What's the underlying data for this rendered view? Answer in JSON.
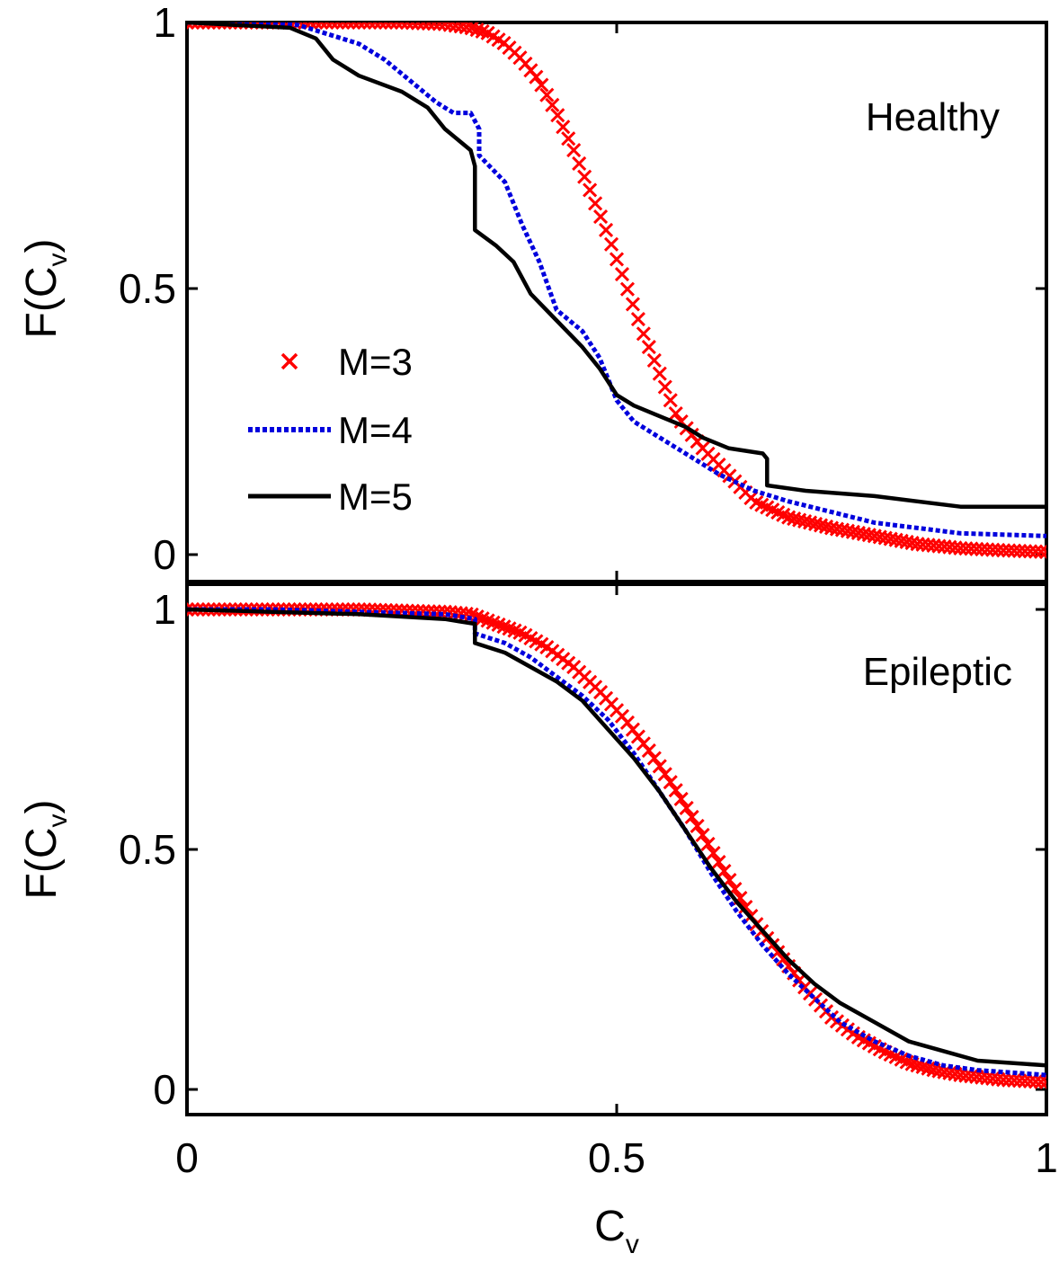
{
  "chart_data": [
    {
      "type": "line",
      "panel_label": "Healthy",
      "xlim": [
        0,
        1
      ],
      "ylim": [
        0,
        1
      ],
      "ylabel": "F(C",
      "ylabel_sub": "v",
      "ylabel_suffix": ")",
      "yticks": [
        "0",
        "0.5",
        "1"
      ],
      "legend": {
        "placement": "center-left",
        "entries": [
          "M=3",
          "M=4",
          "M=5"
        ]
      },
      "series": [
        {
          "name": "M=3",
          "color": "#ff0000",
          "marker": "x",
          "x": [
            0.0,
            0.05,
            0.1,
            0.15,
            0.2,
            0.25,
            0.3,
            0.33,
            0.35,
            0.37,
            0.39,
            0.41,
            0.43,
            0.45,
            0.47,
            0.49,
            0.51,
            0.53,
            0.55,
            0.57,
            0.6,
            0.63,
            0.66,
            0.7,
            0.75,
            0.8,
            0.85,
            0.9,
            0.95,
            1.0
          ],
          "y": [
            1.0,
            1.0,
            1.0,
            1.0,
            1.0,
            1.0,
            0.997,
            0.99,
            0.98,
            0.96,
            0.93,
            0.89,
            0.83,
            0.76,
            0.68,
            0.6,
            0.51,
            0.42,
            0.34,
            0.26,
            0.2,
            0.15,
            0.1,
            0.07,
            0.05,
            0.035,
            0.02,
            0.012,
            0.008,
            0.005
          ]
        },
        {
          "name": "M=4",
          "color": "#0000dd",
          "dash": "dotted",
          "x": [
            0.0,
            0.1,
            0.13,
            0.16,
            0.2,
            0.23,
            0.26,
            0.29,
            0.31,
            0.33,
            0.34,
            0.34,
            0.37,
            0.39,
            0.41,
            0.43,
            0.46,
            0.48,
            0.5,
            0.52,
            0.55,
            0.58,
            0.62,
            0.66,
            0.7,
            0.75,
            0.8,
            0.85,
            0.9,
            1.0
          ],
          "y": [
            1.0,
            1.0,
            0.995,
            0.98,
            0.96,
            0.93,
            0.89,
            0.85,
            0.83,
            0.83,
            0.8,
            0.75,
            0.7,
            0.62,
            0.55,
            0.46,
            0.42,
            0.37,
            0.29,
            0.25,
            0.22,
            0.19,
            0.15,
            0.12,
            0.1,
            0.08,
            0.06,
            0.05,
            0.04,
            0.035
          ]
        },
        {
          "name": "M=5",
          "color": "#000000",
          "dash": "solid",
          "x": [
            0.0,
            0.12,
            0.15,
            0.17,
            0.2,
            0.25,
            0.28,
            0.3,
            0.33,
            0.335,
            0.335,
            0.36,
            0.38,
            0.4,
            0.43,
            0.46,
            0.48,
            0.5,
            0.52,
            0.55,
            0.58,
            0.6,
            0.63,
            0.67,
            0.675,
            0.675,
            0.72,
            0.8,
            0.9,
            1.0
          ],
          "y": [
            1.0,
            0.99,
            0.97,
            0.93,
            0.9,
            0.87,
            0.84,
            0.8,
            0.76,
            0.73,
            0.61,
            0.58,
            0.55,
            0.49,
            0.44,
            0.39,
            0.35,
            0.3,
            0.28,
            0.26,
            0.24,
            0.22,
            0.2,
            0.19,
            0.18,
            0.13,
            0.12,
            0.11,
            0.09,
            0.09
          ]
        }
      ]
    },
    {
      "type": "line",
      "panel_label": "Epileptic",
      "xlim": [
        0,
        1
      ],
      "ylim": [
        0,
        1
      ],
      "xlabel": "C",
      "xlabel_sub": "v",
      "ylabel": "F(C",
      "ylabel_sub": "v",
      "ylabel_suffix": ")",
      "xticks": [
        "0",
        "0.5",
        "1"
      ],
      "yticks": [
        "0",
        "0.5",
        "1"
      ],
      "series": [
        {
          "name": "M=3",
          "color": "#ff0000",
          "marker": "x",
          "x": [
            0.0,
            0.1,
            0.2,
            0.3,
            0.33,
            0.36,
            0.39,
            0.42,
            0.45,
            0.48,
            0.51,
            0.54,
            0.57,
            0.6,
            0.63,
            0.66,
            0.69,
            0.72,
            0.75,
            0.78,
            0.81,
            0.84,
            0.87,
            0.9,
            0.95,
            1.0
          ],
          "y": [
            1.0,
            1.0,
            1.0,
            0.995,
            0.99,
            0.97,
            0.95,
            0.92,
            0.88,
            0.83,
            0.77,
            0.7,
            0.62,
            0.53,
            0.44,
            0.35,
            0.28,
            0.21,
            0.15,
            0.11,
            0.08,
            0.055,
            0.04,
            0.03,
            0.02,
            0.015
          ]
        },
        {
          "name": "M=4",
          "color": "#0000dd",
          "dash": "dotted",
          "x": [
            0.0,
            0.1,
            0.2,
            0.3,
            0.335,
            0.335,
            0.37,
            0.4,
            0.43,
            0.46,
            0.49,
            0.52,
            0.55,
            0.58,
            0.61,
            0.64,
            0.67,
            0.7,
            0.73,
            0.76,
            0.8,
            0.84,
            0.88,
            0.92,
            0.96,
            1.0
          ],
          "y": [
            1.0,
            1.0,
            0.995,
            0.99,
            0.98,
            0.95,
            0.93,
            0.9,
            0.86,
            0.82,
            0.77,
            0.7,
            0.62,
            0.54,
            0.45,
            0.37,
            0.3,
            0.24,
            0.19,
            0.14,
            0.1,
            0.07,
            0.05,
            0.04,
            0.035,
            0.03
          ]
        },
        {
          "name": "M=5",
          "color": "#000000",
          "dash": "solid",
          "x": [
            0.0,
            0.1,
            0.2,
            0.3,
            0.335,
            0.335,
            0.37,
            0.4,
            0.43,
            0.46,
            0.49,
            0.52,
            0.55,
            0.58,
            0.61,
            0.64,
            0.67,
            0.7,
            0.73,
            0.76,
            0.8,
            0.84,
            0.88,
            0.92,
            0.96,
            1.0
          ],
          "y": [
            1.0,
            0.995,
            0.99,
            0.98,
            0.97,
            0.93,
            0.91,
            0.88,
            0.85,
            0.81,
            0.75,
            0.69,
            0.62,
            0.54,
            0.46,
            0.39,
            0.33,
            0.27,
            0.22,
            0.18,
            0.14,
            0.1,
            0.08,
            0.06,
            0.055,
            0.05
          ]
        }
      ]
    }
  ]
}
